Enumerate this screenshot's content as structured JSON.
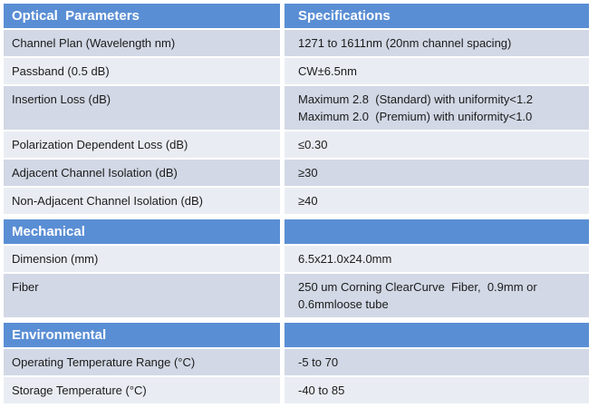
{
  "colors": {
    "header_blue": "#5a8ed4",
    "band_dark": "#d2d8e5",
    "band_light": "#e9edf3",
    "header_text": "#ffffff",
    "body_text": "#1b1b1b",
    "page_background": "#ffffff"
  },
  "table": {
    "sections": [
      {
        "title": "Optical  Parameters",
        "spec_title": "Specifications",
        "rows": [
          {
            "param": "Channel Plan (Wavelength nm)",
            "spec": "1271 to 1611nm (20nm channel spacing)"
          },
          {
            "param": "Passband (0.5 dB)",
            "spec": "CW±6.5nm"
          },
          {
            "param": "Insertion Loss (dB)",
            "spec": "Maximum 2.8  (Standard) with uniformity<1.2\nMaximum 2.0  (Premium) with uniformity<1.0"
          },
          {
            "param": "Polarization Dependent Loss (dB)",
            "spec": "≤0.30"
          },
          {
            "param": "Adjacent Channel Isolation (dB)",
            "spec": "≥30"
          },
          {
            "param": "Non-Adjacent Channel Isolation (dB)",
            "spec": "≥40"
          }
        ]
      },
      {
        "title": "Mechanical",
        "spec_title": "",
        "rows": [
          {
            "param": "Dimension (mm)",
            "spec": "6.5x21.0x24.0mm"
          },
          {
            "param": "Fiber",
            "spec": "250 um Corning ClearCurve  Fiber,  0.9mm or\n0.6mmloose tube"
          }
        ]
      },
      {
        "title": "Environmental",
        "spec_title": "",
        "rows": [
          {
            "param": "Operating Temperature Range (°C)",
            "spec": "-5 to 70"
          },
          {
            "param": "Storage Temperature (°C)",
            "spec": "-40 to 85"
          }
        ]
      }
    ]
  }
}
